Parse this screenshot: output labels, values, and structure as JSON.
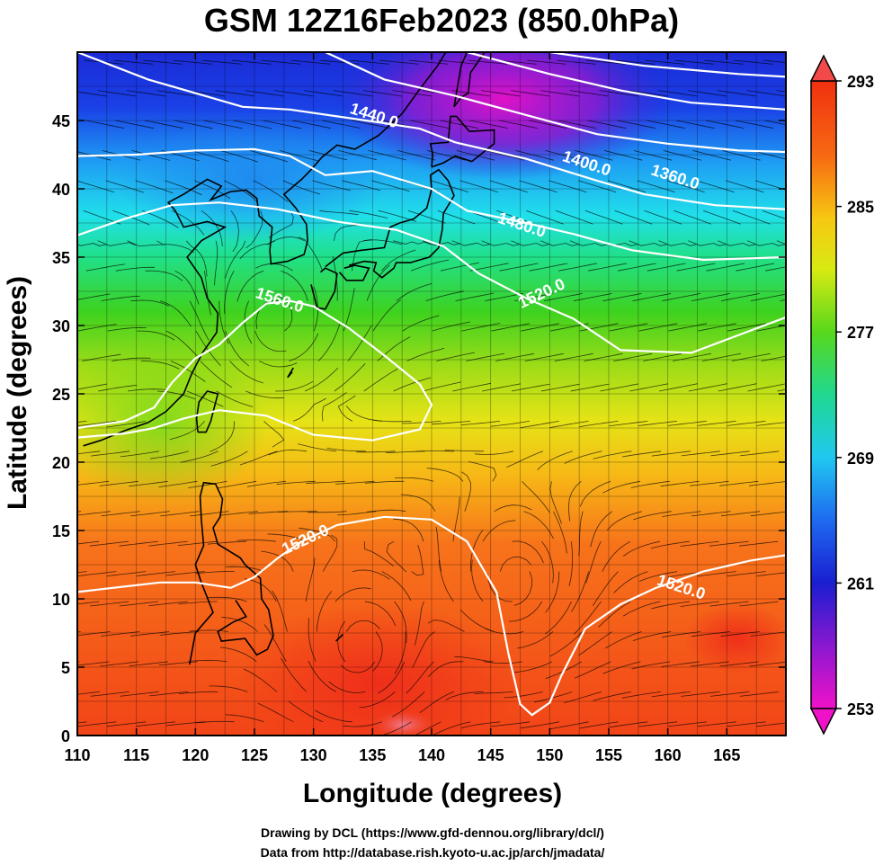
{
  "title": "GSM 12Z16Feb2023 (850.0hPa)",
  "xlabel": "Longitude (degrees)",
  "ylabel": "Latitude  (degrees)",
  "credits": [
    "Drawing by DCL (https://www.gfd-dennou.org/library/dcl/)",
    "Data from http://database.rish.kyoto-u.ac.jp/arch/jmadata/"
  ],
  "chart_data": {
    "type": "heatmap",
    "xlim": [
      110,
      170
    ],
    "ylim": [
      0,
      50
    ],
    "xticks": [
      110,
      115,
      120,
      125,
      130,
      135,
      140,
      145,
      150,
      155,
      160,
      165
    ],
    "yticks": [
      0,
      5,
      10,
      15,
      20,
      25,
      30,
      35,
      40,
      45
    ],
    "colorbar": {
      "ticks": [
        293,
        285,
        277,
        269,
        261,
        253
      ],
      "range": [
        253,
        293
      ]
    },
    "contour_labels": [
      {
        "text": "1440.0",
        "lon": 135.0,
        "lat": 45.0
      },
      {
        "text": "1400.0",
        "lon": 153.0,
        "lat": 41.5
      },
      {
        "text": "1360.0",
        "lon": 160.5,
        "lat": 40.5
      },
      {
        "text": "1480.0",
        "lon": 147.5,
        "lat": 37.0
      },
      {
        "text": "1520.0",
        "lon": 149.5,
        "lat": 32.0
      },
      {
        "text": "1560.0",
        "lon": 127.0,
        "lat": 31.5
      },
      {
        "text": "1520.0",
        "lon": 129.5,
        "lat": 14.0
      },
      {
        "text": "1520.0",
        "lon": 161.0,
        "lat": 10.5
      }
    ]
  }
}
